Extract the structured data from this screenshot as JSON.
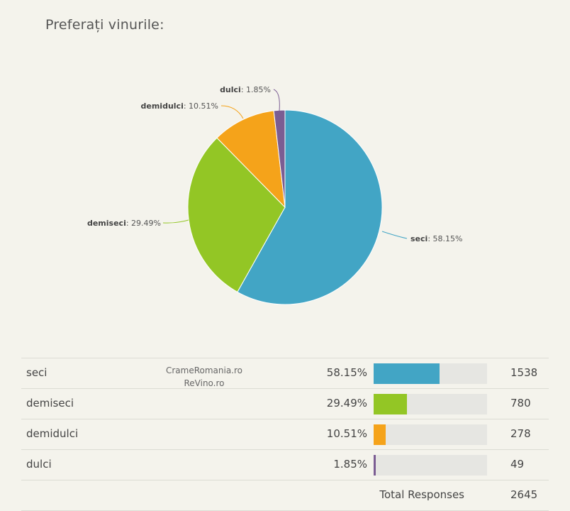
{
  "page": {
    "title": "Preferați vinurile:"
  },
  "watermark": {
    "line1": "CrameRomania.ro",
    "line2": "ReVino.ro"
  },
  "chart_data": {
    "type": "pie",
    "title": "Preferați vinurile:",
    "slices": [
      {
        "label": "seci",
        "percent": 58.15,
        "count": 1538,
        "color": "#42a5c5"
      },
      {
        "label": "demiseci",
        "percent": 29.49,
        "count": 780,
        "color": "#93c625"
      },
      {
        "label": "demidulci",
        "percent": 10.51,
        "count": 278,
        "color": "#f5a31a"
      },
      {
        "label": "dulci",
        "percent": 1.85,
        "count": 49,
        "color": "#7b5d93"
      }
    ]
  },
  "table": {
    "rows": [
      {
        "label": "seci",
        "percent_text": "58.15%",
        "count": "1538"
      },
      {
        "label": "demiseci",
        "percent_text": "29.49%",
        "count": "780"
      },
      {
        "label": "demidulci",
        "percent_text": "10.51%",
        "count": "278"
      },
      {
        "label": "dulci",
        "percent_text": "1.85%",
        "count": "49"
      }
    ],
    "total_label": "Total Responses",
    "total_value": "2645"
  }
}
